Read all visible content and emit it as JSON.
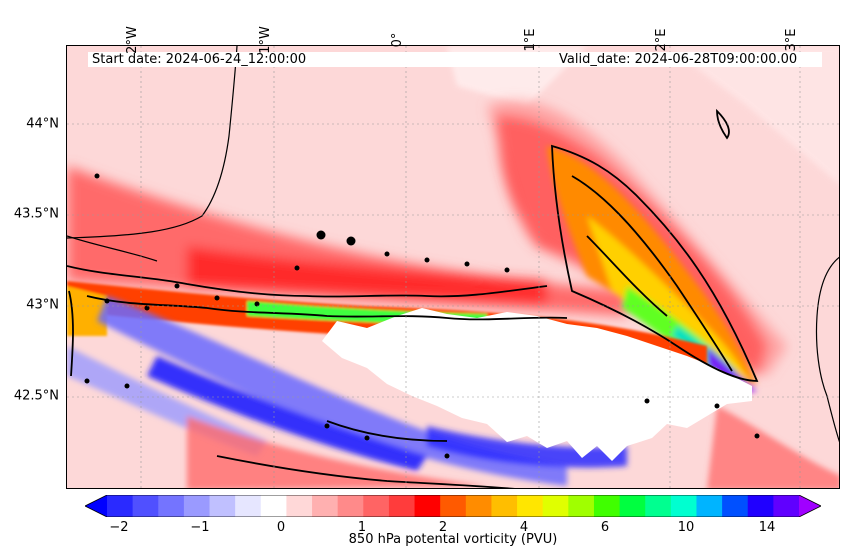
{
  "header": {
    "start_date": "Start date: 2024-06-24_12:00:00",
    "valid_date": "Valid_date: 2024-06-28T09:00:00.00"
  },
  "axes": {
    "lon_labels": [
      "2°W",
      "1°W",
      "0°",
      "1°E",
      "2°E",
      "3°E"
    ],
    "lat_labels": [
      "44°N",
      "43.5°N",
      "43°N",
      "42.5°N"
    ]
  },
  "colorbar": {
    "title": "850 hPa potental vorticity (PVU)",
    "tick_labels": [
      "−2",
      "−1",
      "0",
      "1",
      "2",
      "4",
      "6",
      "10",
      "14"
    ],
    "colors": [
      "#0000ff",
      "#2a2aff",
      "#5050ff",
      "#7474ff",
      "#9a9aff",
      "#c0c0ff",
      "#e6e6ff",
      "#ffffff",
      "#ffd8d8",
      "#ffb0b0",
      "#ff8a8a",
      "#ff6464",
      "#ff3c3c",
      "#ff0000",
      "#ff5a00",
      "#ff8c00",
      "#ffbe00",
      "#ffe600",
      "#e0ff00",
      "#a0ff00",
      "#40ff00",
      "#00ff40",
      "#00ff90",
      "#00ffd0",
      "#00b4ff",
      "#0050ff",
      "#2000ff",
      "#6000ff",
      "#a000ff"
    ]
  },
  "colors": {
    "high_pv": "#ff0000",
    "low_pv": "#0000ff",
    "contour": "#000000",
    "missing": "#ffffff"
  }
}
